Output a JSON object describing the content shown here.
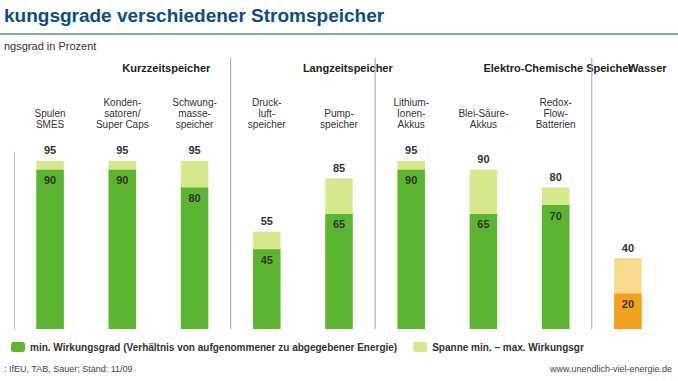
{
  "chart_data": {
    "type": "bar",
    "title": "kungsgrade verschiedener Stromspeicher",
    "y_label": "ngsgrad in Prozent",
    "categories": [
      "Spulen\nSMES",
      "Konden-\nsatoren/\nSuper Caps",
      "Schwung-\nmasse-\nspeicher",
      "Druck-\nluft-\nspeicher",
      "Pump-\nspeicher",
      "Lithium-\nIonen-\nAkkus",
      "Blei-Säure-\nAkkus",
      "Redox-\nFlow-\nBatterien",
      null
    ],
    "category_groups": [
      "Kurzzeitspeicher",
      "Kurzzeitspeicher",
      "Kurzzeitspeicher",
      "Langzeitspeicher",
      "Langzeitspeicher",
      "Elektro-Chemische Speicher",
      "Elektro-Chemische Speicher",
      "Elektro-Chemische Speicher",
      "Wasser"
    ],
    "series": [
      {
        "name": "min. Wirkungsgrad (Verhältnis von aufgenommener zu abgegebener Energie)",
        "color": "#5cb531",
        "colors": [
          "#5cb531",
          "#5cb531",
          "#5cb531",
          "#5cb531",
          "#5cb531",
          "#5cb531",
          "#5cb531",
          "#5cb531",
          "#f2a01e"
        ],
        "values": [
          90,
          90,
          80,
          45,
          65,
          90,
          65,
          70,
          20
        ]
      },
      {
        "name": "Spanne min. – max. Wirkungsgr",
        "color": "#d5e88c",
        "colors": [
          "#d5e88c",
          "#d5e88c",
          "#d5e88c",
          "#d5e88c",
          "#d5e88c",
          "#d5e88c",
          "#d5e88c",
          "#d5e88c",
          "#f9d98a"
        ],
        "values": [
          95,
          95,
          95,
          55,
          85,
          95,
          90,
          80,
          40
        ]
      }
    ],
    "ylim": [
      0,
      100
    ],
    "yticks": [],
    "tick_labels": "x",
    "data_labels": true,
    "grid": false,
    "legend": "bottom",
    "source": ": IfEU, TAB, Sauer; Stand: 11/09",
    "url": "www.unendlich-viel-energie.de"
  }
}
